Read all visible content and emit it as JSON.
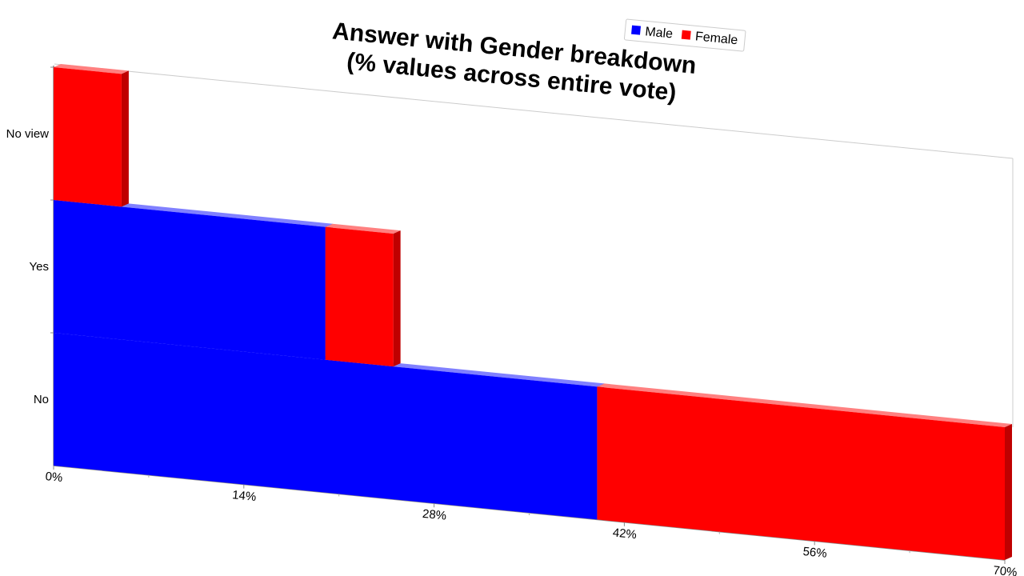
{
  "chart_data": {
    "type": "bar",
    "orientation": "horizontal",
    "stacked": true,
    "title_lines": [
      "Answer with Gender breakdown",
      "(% values across entire vote)"
    ],
    "categories": [
      "No",
      "Yes",
      "No view"
    ],
    "series": [
      {
        "name": "Male",
        "values": [
          40.0,
          20.0,
          0.0
        ],
        "color": "#0000ff"
      },
      {
        "name": "Female",
        "values": [
          30.0,
          5.0,
          5.0
        ],
        "color": "#ff0000"
      }
    ],
    "x_ticks": [
      "0%",
      "14%",
      "28%",
      "42%",
      "56%",
      "70%"
    ],
    "xlim": [
      0,
      70
    ],
    "legend_position": "top-right",
    "grid": false,
    "style": "3d-perspective"
  }
}
